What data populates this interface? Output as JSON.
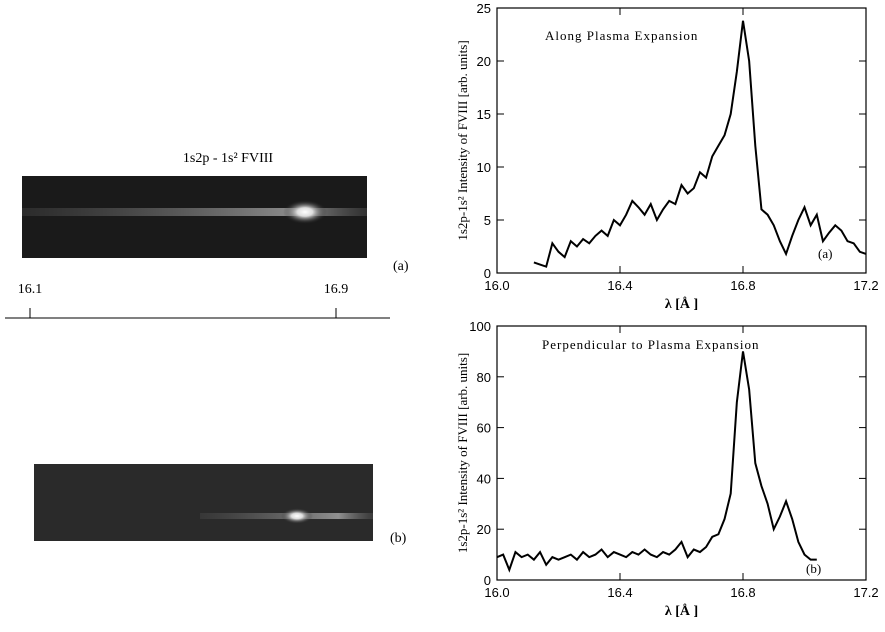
{
  "spectra": {
    "title": "1s2p - 1s²  FVIII",
    "label_a": "(a)",
    "label_b": "(b)",
    "scale_labels": [
      "16.1",
      "16.9"
    ]
  },
  "chart_data": [
    {
      "type": "line",
      "color": "#000000",
      "annotations": [
        "Along Plasma Expansion",
        "(a)"
      ],
      "x_label": "λ [Å ]",
      "y_label": "1s2p-1s² Intensity of FVIII [arb. units]",
      "xlim": [
        16.0,
        17.2
      ],
      "xticks": [
        {
          "value": 16,
          "label": "16.0"
        },
        16.4,
        16.8,
        17.2
      ],
      "ylim": [
        0,
        25
      ],
      "yticks": [
        0,
        5,
        10,
        15,
        20,
        25
      ],
      "x": [
        16.12,
        16.14,
        16.16,
        16.18,
        16.2,
        16.22,
        16.24,
        16.26,
        16.28,
        16.3,
        16.32,
        16.34,
        16.36,
        16.38,
        16.4,
        16.42,
        16.44,
        16.46,
        16.48,
        16.5,
        16.52,
        16.54,
        16.56,
        16.58,
        16.6,
        16.62,
        16.64,
        16.66,
        16.68,
        16.7,
        16.72,
        16.74,
        16.76,
        16.78,
        16.8,
        16.82,
        16.84,
        16.86,
        16.88,
        16.9,
        16.92,
        16.94,
        16.96,
        16.98,
        17.0,
        17.02,
        17.04,
        17.06,
        17.08,
        17.1,
        17.12,
        17.14,
        17.16,
        17.18,
        17.2
      ],
      "values": [
        1,
        0.8,
        0.6,
        2.8,
        2,
        1.5,
        3,
        2.5,
        3.2,
        2.8,
        3.5,
        4,
        3.5,
        5,
        4.5,
        5.5,
        6.8,
        6.2,
        5.5,
        6.5,
        5,
        6,
        6.8,
        6.5,
        8.3,
        7.5,
        8,
        9.5,
        9,
        11,
        12,
        13,
        15,
        19,
        23.8,
        20,
        12,
        6,
        5.5,
        4.5,
        3,
        1.8,
        3.5,
        5,
        6.2,
        4.5,
        5.5,
        3,
        3.8,
        4.5,
        4,
        3,
        2.8,
        2,
        1.8
      ]
    },
    {
      "type": "line",
      "color": "#000000",
      "annotations": [
        "Perpendicular to Plasma Expansion",
        "(b)"
      ],
      "x_label": "λ [Å ]",
      "y_label": "1s2p-1s² Intensity of FVIII [arb. units]",
      "xlim": [
        16.0,
        17.2
      ],
      "xticks": [
        {
          "value": 16,
          "label": "16.0"
        },
        16.4,
        16.8,
        17.2
      ],
      "ylim": [
        0,
        100
      ],
      "yticks": [
        0,
        20,
        40,
        60,
        80,
        100
      ],
      "x": [
        16.0,
        16.02,
        16.04,
        16.06,
        16.08,
        16.1,
        16.12,
        16.14,
        16.16,
        16.18,
        16.2,
        16.22,
        16.24,
        16.26,
        16.28,
        16.3,
        16.32,
        16.34,
        16.36,
        16.38,
        16.4,
        16.42,
        16.44,
        16.46,
        16.48,
        16.5,
        16.52,
        16.54,
        16.56,
        16.58,
        16.6,
        16.62,
        16.64,
        16.66,
        16.68,
        16.7,
        16.72,
        16.74,
        16.76,
        16.78,
        16.8,
        16.82,
        16.84,
        16.86,
        16.88,
        16.9,
        16.92,
        16.94,
        16.96,
        16.98,
        17.0,
        17.02,
        17.04
      ],
      "values": [
        9,
        10,
        4,
        11,
        9,
        10,
        8,
        11,
        6,
        9,
        8,
        9,
        10,
        8,
        11,
        9,
        10,
        12,
        9,
        11,
        10,
        9,
        11,
        10,
        12,
        10,
        9,
        11,
        10,
        12,
        15,
        9,
        12,
        11,
        13,
        17,
        18,
        24,
        34,
        70,
        90,
        75,
        46,
        37,
        30,
        20,
        25,
        31,
        24,
        15,
        10,
        8,
        8
      ]
    }
  ]
}
